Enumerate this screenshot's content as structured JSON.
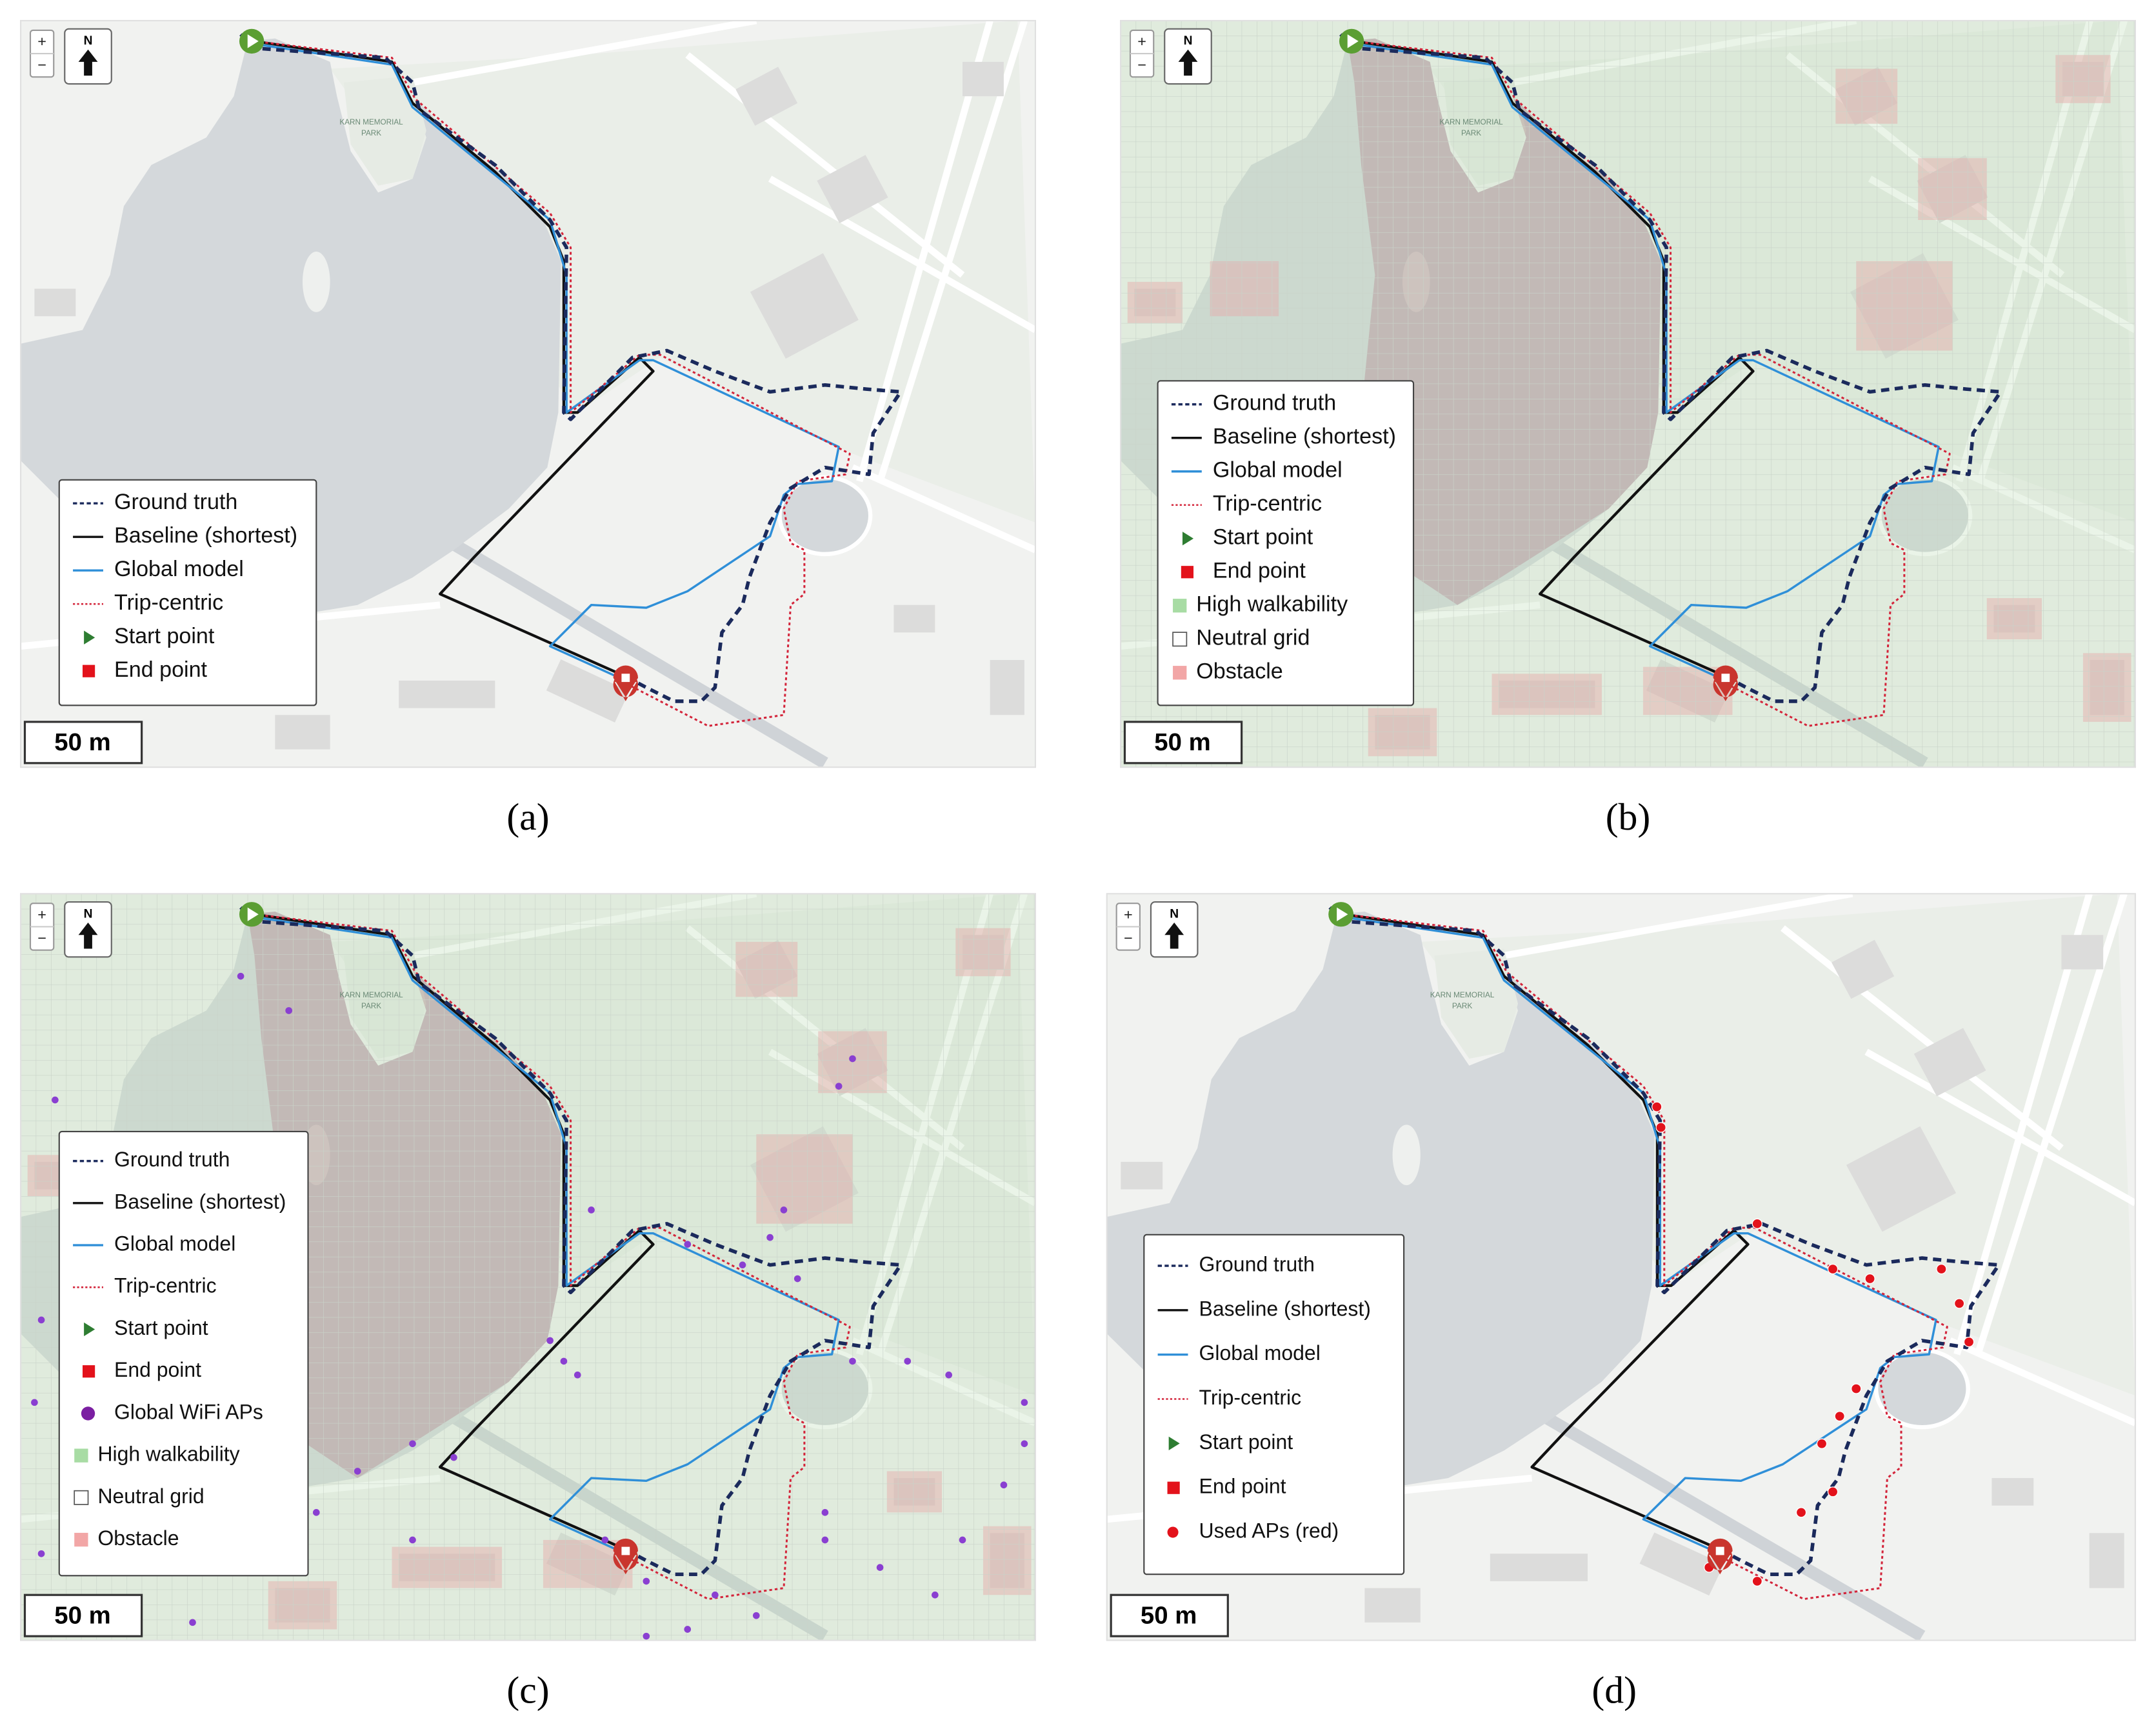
{
  "panels": [
    {
      "caption": "(a)",
      "controls": {
        "zoom_in": "+",
        "zoom_out": "−",
        "north": "N"
      },
      "scale_bar": "50 m",
      "map_labels": [
        "KARN MEMORIAL",
        "PARK"
      ],
      "legend": [
        "Ground truth",
        "Baseline (shortest)",
        "Global model",
        "Trip-centric",
        "Start point",
        "End point"
      ]
    },
    {
      "caption": "(b)",
      "controls": {
        "zoom_in": "+",
        "zoom_out": "−",
        "north": "N"
      },
      "scale_bar": "50 m",
      "map_labels": [
        "KARN MEMORIAL",
        "PARK"
      ],
      "legend": [
        "Ground truth",
        "Baseline (shortest)",
        "Global model",
        "Trip-centric",
        "Start point",
        "End point",
        "High walkability",
        "Neutral grid",
        "Obstacle"
      ]
    },
    {
      "caption": "(c)",
      "controls": {
        "zoom_in": "+",
        "zoom_out": "−",
        "north": "N"
      },
      "scale_bar": "50 m",
      "map_labels": [
        "KARN MEMORIAL",
        "PARK"
      ],
      "legend": [
        "Ground truth",
        "Baseline (shortest)",
        "Global model",
        "Trip-centric",
        "Start point",
        "End point",
        "Global WiFi APs",
        "High walkability",
        "Neutral grid",
        "Obstacle"
      ]
    },
    {
      "caption": "(d)",
      "controls": {
        "zoom_in": "+",
        "zoom_out": "−",
        "north": "N"
      },
      "scale_bar": "50 m",
      "map_labels": [
        "KARN MEMORIAL",
        "PARK"
      ],
      "legend": [
        "Ground truth",
        "Baseline (shortest)",
        "Global model",
        "Trip-centric",
        "Start point",
        "End point",
        "Used APs (red)"
      ]
    }
  ]
}
